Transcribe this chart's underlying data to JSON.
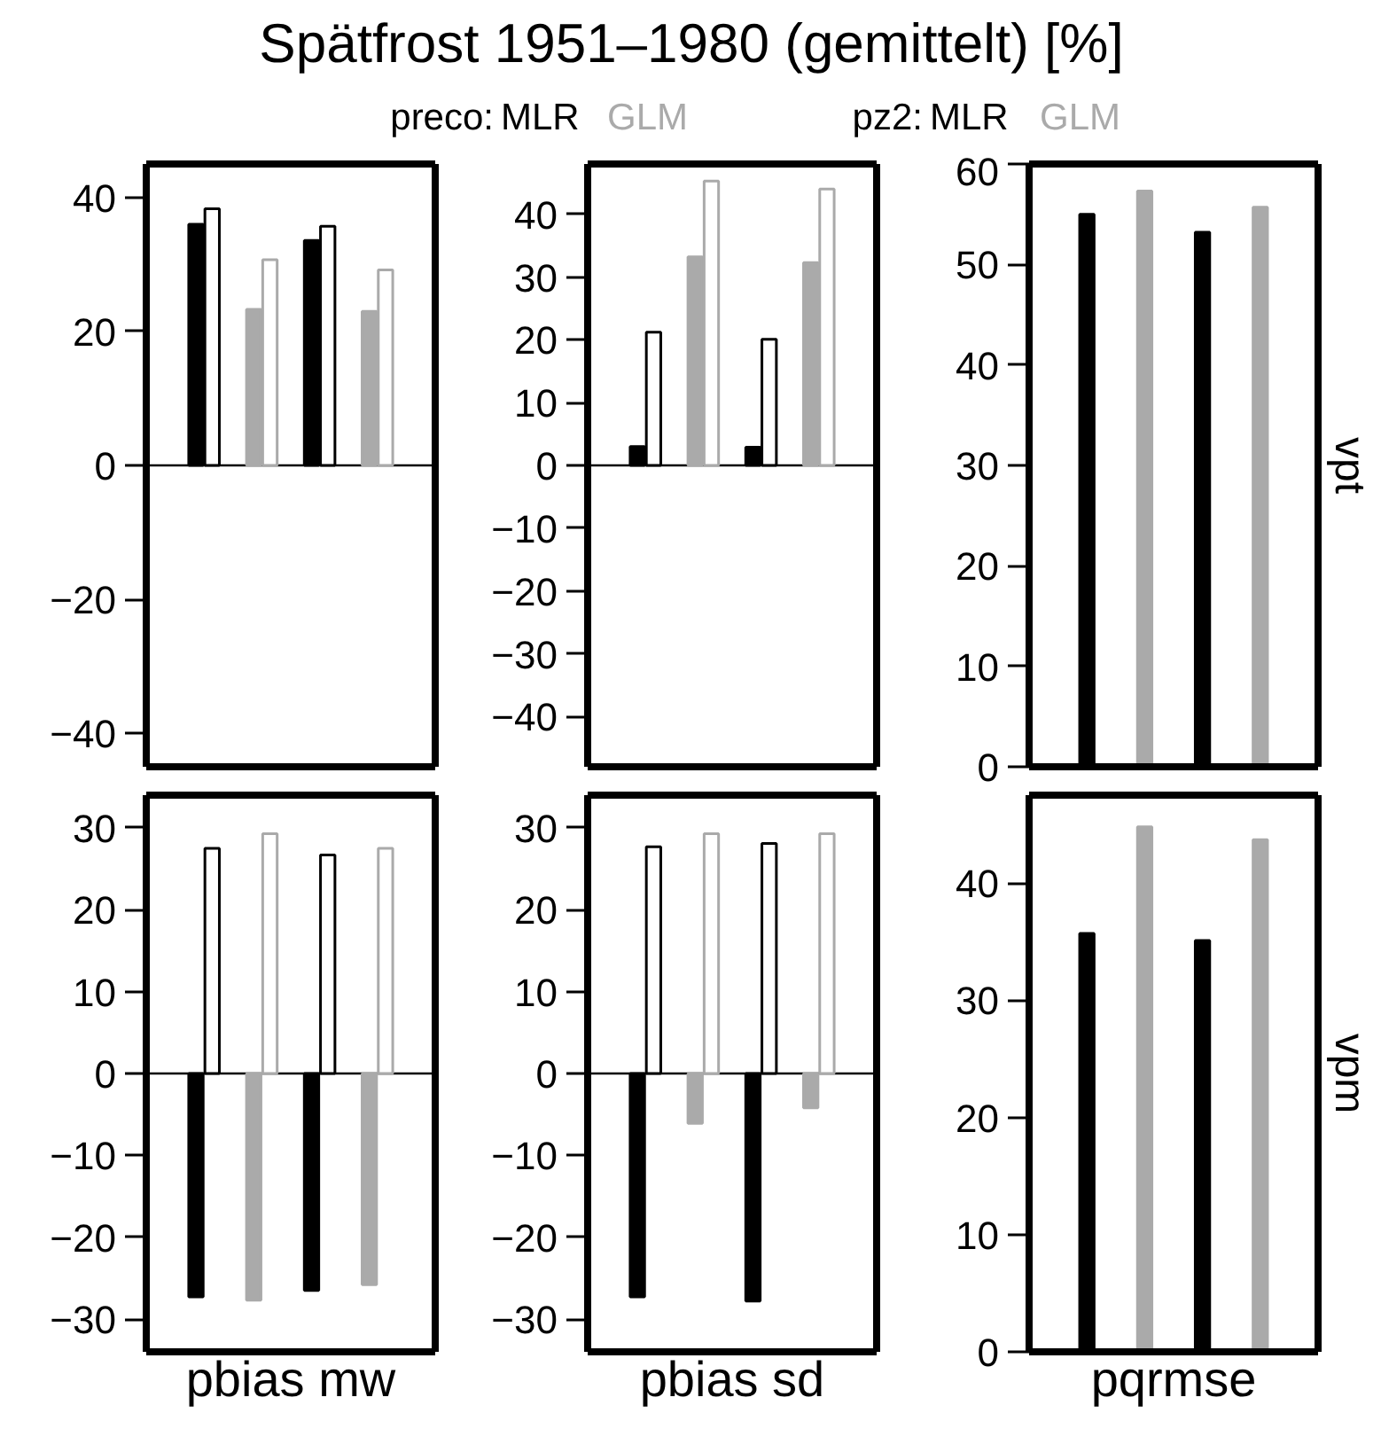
{
  "chart_data": [
    {
      "type": "other",
      "title": "Spätfrost 1951–1980 (gemittelt) [%]",
      "annotations": [
        "preco:",
        "MLR",
        "GLM",
        "pz2:",
        "MLR",
        "GLM"
      ],
      "colors": [
        "#000000",
        "#000000",
        "#aaaaaa",
        "#000000",
        "#000000",
        "#aaaaaa"
      ]
    },
    {
      "type": "bar",
      "categories": [
        null,
        null,
        null,
        null
      ],
      "ylim": [
        -45,
        45
      ],
      "yticks": [
        -40,
        -20,
        0,
        20,
        40
      ],
      "tick_labels": "y",
      "ref_lines": [
        {
          "axis": "y",
          "value": 0
        }
      ],
      "series": [
        {
          "colors": [
            "#000000",
            "#aaaaaa",
            "#000000",
            "#aaaaaa"
          ],
          "values": [
            36.0,
            23.3,
            33.6,
            23.0
          ]
        },
        {
          "colors": [
            "#000000",
            "#aaaaaa",
            "#000000",
            "#aaaaaa"
          ],
          "values": [
            38.3,
            30.7,
            35.7,
            29.2
          ]
        }
      ]
    },
    {
      "type": "bar",
      "categories": [
        null,
        null,
        null,
        null
      ],
      "ylim": [
        -48,
        48
      ],
      "yticks": [
        -40,
        -30,
        -20,
        -10,
        0,
        10,
        20,
        30,
        40
      ],
      "tick_labels": "y",
      "ref_lines": [
        {
          "axis": "y",
          "value": 0
        }
      ],
      "series": [
        {
          "colors": [
            "#000000",
            "#aaaaaa",
            "#000000",
            "#aaaaaa"
          ],
          "values": [
            3.0,
            33.2,
            2.9,
            32.3
          ]
        },
        {
          "colors": [
            "#000000",
            "#aaaaaa",
            "#000000",
            "#aaaaaa"
          ],
          "values": [
            21.2,
            45.3,
            20.1,
            44.0
          ]
        }
      ]
    },
    {
      "type": "bar",
      "categories": [
        null,
        null,
        null,
        null
      ],
      "ylim": [
        0,
        60
      ],
      "yticks": [
        0,
        10,
        20,
        30,
        40,
        50,
        60
      ],
      "tick_labels": "y",
      "y2label": "vpt",
      "series": [
        {
          "colors": [
            "#000000",
            "#aaaaaa",
            "#000000",
            "#aaaaaa"
          ],
          "values": [
            55.0,
            57.3,
            53.2,
            55.7
          ]
        }
      ]
    },
    {
      "type": "bar",
      "categories": [
        null,
        null,
        null,
        null
      ],
      "ylim": [
        -34,
        34
      ],
      "yticks": [
        -30,
        -20,
        -10,
        0,
        10,
        20,
        30
      ],
      "tick_labels": "y",
      "xlabel": "pbias mw",
      "ref_lines": [
        {
          "axis": "y",
          "value": 0
        }
      ],
      "series": [
        {
          "colors": [
            "#000000",
            "#aaaaaa",
            "#000000",
            "#aaaaaa"
          ],
          "values": [
            -27.3,
            -27.7,
            -26.5,
            -25.8
          ]
        },
        {
          "colors": [
            "#000000",
            "#aaaaaa",
            "#000000",
            "#aaaaaa"
          ],
          "values": [
            27.5,
            29.3,
            26.7,
            27.5
          ]
        }
      ]
    },
    {
      "type": "bar",
      "categories": [
        null,
        null,
        null,
        null
      ],
      "ylim": [
        -34,
        34
      ],
      "yticks": [
        -30,
        -20,
        -10,
        0,
        10,
        20,
        30
      ],
      "tick_labels": "y",
      "xlabel": "pbias sd",
      "ref_lines": [
        {
          "axis": "y",
          "value": 0
        }
      ],
      "series": [
        {
          "colors": [
            "#000000",
            "#aaaaaa",
            "#000000",
            "#aaaaaa"
          ],
          "values": [
            -27.3,
            -6.1,
            -27.8,
            -4.2
          ]
        },
        {
          "colors": [
            "#000000",
            "#aaaaaa",
            "#000000",
            "#aaaaaa"
          ],
          "values": [
            27.7,
            29.3,
            28.1,
            29.3
          ]
        }
      ]
    },
    {
      "type": "bar",
      "categories": [
        null,
        null,
        null,
        null
      ],
      "ylim": [
        0,
        47.5
      ],
      "yticks": [
        0,
        10,
        20,
        30,
        40
      ],
      "tick_labels": "y",
      "xlabel": "pqrmse",
      "y2label": "vpm",
      "series": [
        {
          "colors": [
            "#000000",
            "#aaaaaa",
            "#000000",
            "#aaaaaa"
          ],
          "values": [
            35.7,
            44.8,
            35.1,
            43.7
          ]
        }
      ]
    }
  ]
}
